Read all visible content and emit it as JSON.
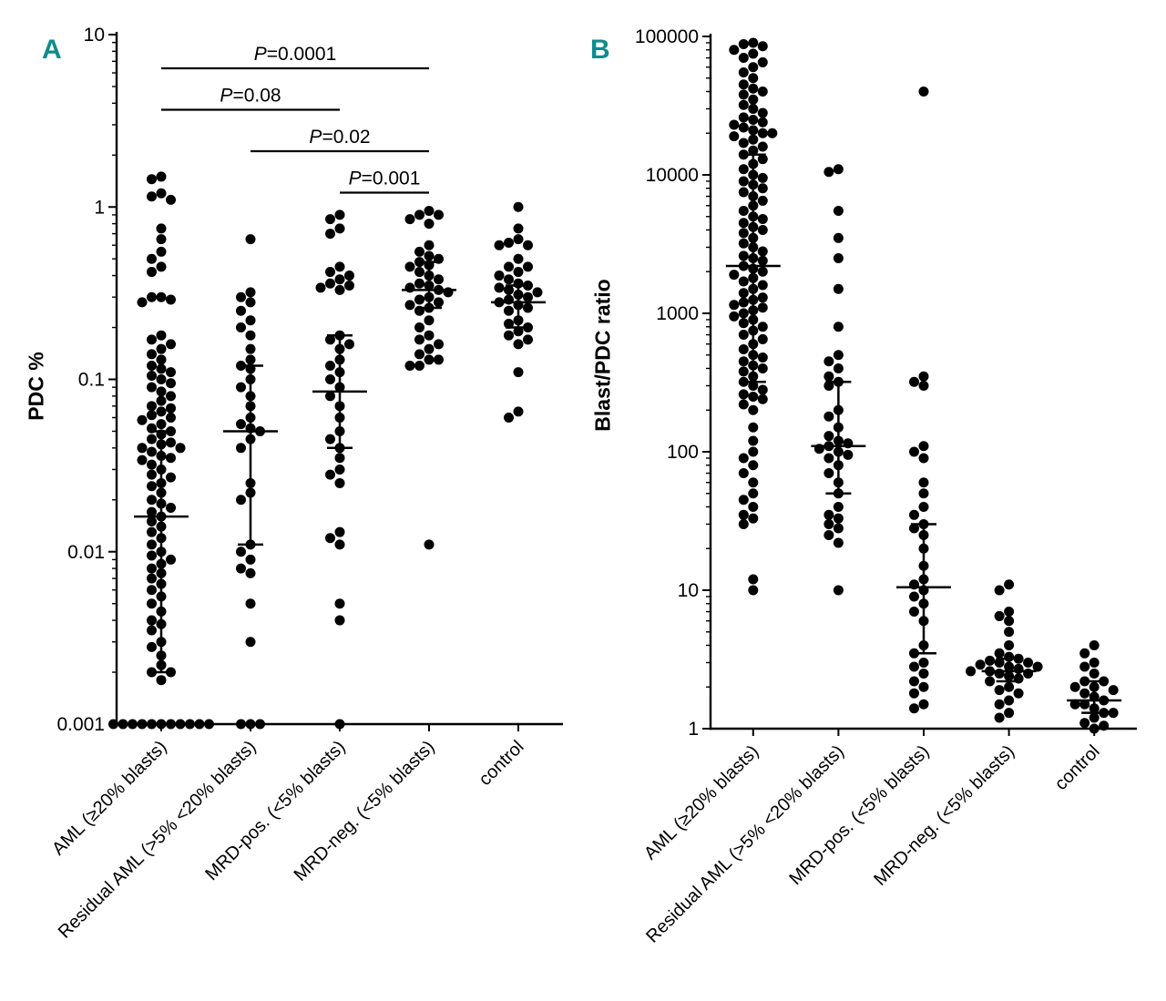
{
  "chart_data": [
    {
      "type": "scatter",
      "panel_label": "A",
      "panel_label_color": "#0F8B8D",
      "dot_color": "#000000",
      "ylabel": "PDC %",
      "yscale": "log",
      "ylim": [
        0.001,
        10
      ],
      "ytick_labels": [
        "10",
        "1",
        "0.1",
        "0.01",
        "0.001"
      ],
      "grid": false,
      "categories": [
        "AML (≥20% blasts)",
        "Residual AML (>5% <20% blasts)",
        "MRD-pos. (<5% blasts)",
        "MRD-neg. (<5% blasts)",
        "control"
      ],
      "annotations": [
        {
          "label": "P=0.0001",
          "from_category": 0,
          "to_category": 3
        },
        {
          "label": "P=0.08",
          "from_category": 0,
          "to_category": 2
        },
        {
          "label": "P=0.02",
          "from_category": 1,
          "to_category": 3
        },
        {
          "label": "P=0.001",
          "from_category": 2,
          "to_category": 3
        }
      ],
      "series": [
        {
          "name": "AML (≥20% blasts)",
          "median": 0.016,
          "iqr": [
            0.002,
            0.05
          ],
          "values": [
            1.5,
            1.45,
            1.2,
            1.15,
            1.1,
            0.75,
            0.65,
            0.55,
            0.5,
            0.45,
            0.42,
            0.3,
            0.3,
            0.29,
            0.28,
            0.18,
            0.17,
            0.16,
            0.15,
            0.14,
            0.13,
            0.12,
            0.115,
            0.11,
            0.105,
            0.1,
            0.095,
            0.09,
            0.085,
            0.08,
            0.075,
            0.07,
            0.068,
            0.065,
            0.062,
            0.06,
            0.058,
            0.055,
            0.052,
            0.05,
            0.048,
            0.045,
            0.043,
            0.042,
            0.04,
            0.04,
            0.038,
            0.036,
            0.035,
            0.034,
            0.032,
            0.03,
            0.028,
            0.027,
            0.025,
            0.024,
            0.022,
            0.02,
            0.019,
            0.018,
            0.017,
            0.016,
            0.015,
            0.014,
            0.013,
            0.012,
            0.011,
            0.01,
            0.0095,
            0.009,
            0.0085,
            0.008,
            0.0075,
            0.007,
            0.0065,
            0.006,
            0.0055,
            0.005,
            0.0045,
            0.004,
            0.0038,
            0.0035,
            0.003,
            0.0028,
            0.0025,
            0.0022,
            0.002,
            0.002,
            0.0018,
            0.001,
            0.001,
            0.001,
            0.001,
            0.001,
            0.001,
            0.001,
            0.001,
            0.001,
            0.001,
            0.001
          ]
        },
        {
          "name": "Residual AML (>5% <20% blasts)",
          "median": 0.05,
          "iqr": [
            0.011,
            0.12
          ],
          "values": [
            0.65,
            0.32,
            0.3,
            0.28,
            0.25,
            0.22,
            0.2,
            0.18,
            0.15,
            0.13,
            0.12,
            0.115,
            0.1,
            0.09,
            0.08,
            0.07,
            0.06,
            0.055,
            0.052,
            0.05,
            0.045,
            0.04,
            0.025,
            0.022,
            0.02,
            0.011,
            0.01,
            0.009,
            0.008,
            0.0075,
            0.005,
            0.003,
            0.001,
            0.001,
            0.001
          ]
        },
        {
          "name": "MRD-pos. (<5% blasts)",
          "median": 0.085,
          "iqr": [
            0.04,
            0.18
          ],
          "values": [
            0.9,
            0.85,
            0.75,
            0.7,
            0.45,
            0.42,
            0.4,
            0.38,
            0.36,
            0.35,
            0.34,
            0.33,
            0.18,
            0.17,
            0.16,
            0.15,
            0.13,
            0.12,
            0.11,
            0.1,
            0.09,
            0.08,
            0.07,
            0.06,
            0.05,
            0.045,
            0.04,
            0.035,
            0.03,
            0.028,
            0.025,
            0.013,
            0.012,
            0.011,
            0.005,
            0.004,
            0.001
          ]
        },
        {
          "name": "MRD-neg. (<5% blasts)",
          "median": 0.33,
          "iqr": [
            0.26,
            0.48
          ],
          "values": [
            0.95,
            0.9,
            0.9,
            0.85,
            0.8,
            0.6,
            0.55,
            0.52,
            0.5,
            0.48,
            0.46,
            0.45,
            0.42,
            0.4,
            0.38,
            0.36,
            0.35,
            0.34,
            0.33,
            0.32,
            0.3,
            0.29,
            0.28,
            0.27,
            0.26,
            0.25,
            0.22,
            0.2,
            0.18,
            0.17,
            0.16,
            0.15,
            0.14,
            0.13,
            0.13,
            0.12,
            0.12,
            0.011
          ]
        },
        {
          "name": "control",
          "median": 0.28,
          "iqr": [
            0.2,
            0.35
          ],
          "values": [
            1.0,
            0.75,
            0.65,
            0.62,
            0.6,
            0.6,
            0.5,
            0.45,
            0.45,
            0.42,
            0.4,
            0.38,
            0.36,
            0.35,
            0.34,
            0.33,
            0.32,
            0.31,
            0.3,
            0.29,
            0.28,
            0.27,
            0.26,
            0.25,
            0.22,
            0.21,
            0.2,
            0.19,
            0.18,
            0.17,
            0.16,
            0.11,
            0.065,
            0.06
          ]
        }
      ]
    },
    {
      "type": "scatter",
      "panel_label": "B",
      "panel_label_color": "#0F8B8D",
      "dot_color": "#000000",
      "ylabel": "Blast/PDC ratio",
      "yscale": "log",
      "ylim": [
        1,
        100000
      ],
      "ytick_labels": [
        "100000",
        "10000",
        "1000",
        "100",
        "10",
        "1"
      ],
      "grid": false,
      "categories": [
        "AML (≥20% blasts)",
        "Residual AML (>5% <20% blasts)",
        "MRD-pos. (<5% blasts)",
        "MRD-neg. (<5% blasts)",
        "control"
      ],
      "annotations": [],
      "series": [
        {
          "name": "AML (≥20% blasts)",
          "median": 2200,
          "iqr": [
            320,
            14000
          ],
          "values": [
            90000,
            88000,
            85000,
            80000,
            75000,
            70000,
            65000,
            60000,
            55000,
            50000,
            45000,
            42000,
            40000,
            38000,
            35000,
            32000,
            30000,
            28000,
            26000,
            25000,
            24000,
            23000,
            22000,
            21000,
            20000,
            20000,
            19000,
            18000,
            17000,
            16000,
            15000,
            14000,
            13000,
            12000,
            11000,
            10000,
            9500,
            9000,
            8500,
            8000,
            7500,
            7000,
            6500,
            6000,
            5500,
            5000,
            4800,
            4500,
            4200,
            4000,
            3800,
            3500,
            3200,
            3000,
            2800,
            2600,
            2500,
            2400,
            2200,
            2100,
            2000,
            1900,
            1800,
            1700,
            1600,
            1500,
            1400,
            1300,
            1250,
            1200,
            1150,
            1100,
            1050,
            1000,
            950,
            900,
            850,
            800,
            750,
            700,
            650,
            600,
            550,
            500,
            480,
            450,
            420,
            400,
            380,
            350,
            320,
            300,
            280,
            260,
            250,
            240,
            220,
            200,
            150,
            120,
            100,
            90,
            80,
            70,
            60,
            50,
            45,
            40,
            35,
            33,
            30,
            12,
            10
          ]
        },
        {
          "name": "Residual AML (>5% <20% blasts)",
          "median": 110,
          "iqr": [
            50,
            320
          ],
          "values": [
            11000,
            10500,
            5500,
            3500,
            2500,
            1500,
            800,
            500,
            450,
            400,
            350,
            320,
            300,
            200,
            180,
            150,
            130,
            120,
            115,
            110,
            105,
            100,
            95,
            90,
            80,
            70,
            60,
            50,
            40,
            35,
            33,
            30,
            28,
            25,
            22,
            10
          ]
        },
        {
          "name": "MRD-pos. (<5% blasts)",
          "median": 10.5,
          "iqr": [
            3.5,
            30
          ],
          "values": [
            40000,
            350,
            320,
            300,
            110,
            100,
            90,
            60,
            50,
            40,
            35,
            30,
            28,
            25,
            20,
            15,
            12,
            11,
            10,
            9,
            8,
            7,
            6,
            4,
            3.5,
            3,
            2.8,
            2.5,
            2.2,
            2,
            1.8,
            1.5,
            1.4
          ]
        },
        {
          "name": "MRD-neg. (<5% blasts)",
          "median": 2.6,
          "iqr": [
            2.2,
            3.2
          ],
          "values": [
            11,
            10,
            7,
            6.5,
            6,
            5,
            4,
            3.5,
            3.3,
            3.2,
            3.1,
            3,
            3,
            2.9,
            2.8,
            2.8,
            2.7,
            2.6,
            2.6,
            2.5,
            2.5,
            2.4,
            2.3,
            2.2,
            2,
            1.9,
            1.8,
            1.6,
            1.5,
            1.3,
            1.2
          ]
        },
        {
          "name": "control",
          "median": 1.6,
          "iqr": [
            1.3,
            2.2
          ],
          "values": [
            4,
            3.5,
            3,
            2.8,
            2.5,
            2.2,
            2.2,
            2,
            2,
            1.9,
            1.8,
            1.7,
            1.6,
            1.5,
            1.5,
            1.4,
            1.3,
            1.3,
            1.2,
            1.1,
            1.05,
            1
          ]
        }
      ]
    }
  ]
}
